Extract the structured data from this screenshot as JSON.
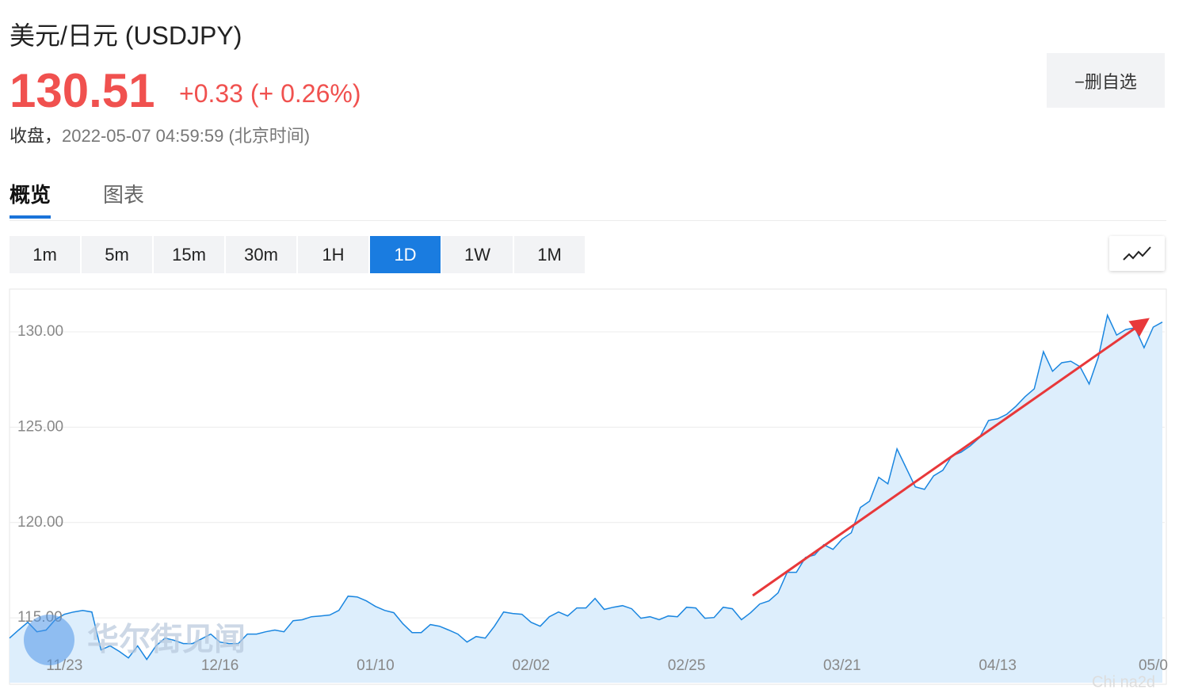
{
  "header": {
    "title": "美元/日元 (USDJPY)",
    "price": "130.51",
    "change": "+0.33 (+ 0.26%)",
    "close_label": "收盘，",
    "close_time": "2022-05-07 04:59:59",
    "timezone": "(北京时间)",
    "watchlist_button": "−删自选"
  },
  "tabs": [
    "概览",
    "图表"
  ],
  "intervals": [
    "1m",
    "5m",
    "15m",
    "30m",
    "1H",
    "1D",
    "1W",
    "1M"
  ],
  "active_interval": "1D",
  "watermarks": [
    "华尔街见闻",
    "Chi na2d"
  ],
  "chart_data": {
    "type": "area",
    "color": "#1a86e0",
    "fill": "#ddeefc",
    "grid": true,
    "ylim": [
      111.6,
      132.2
    ],
    "yticks": [
      {
        "value": 115,
        "label": "115.00"
      },
      {
        "value": 120,
        "label": "120.00"
      },
      {
        "value": 125,
        "label": "125.00"
      },
      {
        "value": 130,
        "label": "130.00"
      }
    ],
    "categories": [
      null,
      null,
      null,
      null,
      null,
      null,
      "11/23",
      null,
      null,
      null,
      null,
      null,
      null,
      null,
      null,
      null,
      null,
      null,
      null,
      null,
      null,
      null,
      null,
      "12/16",
      null,
      null,
      null,
      null,
      null,
      null,
      null,
      null,
      null,
      null,
      null,
      null,
      null,
      null,
      null,
      null,
      "01/10",
      null,
      null,
      null,
      null,
      null,
      null,
      null,
      null,
      null,
      null,
      null,
      null,
      null,
      null,
      null,
      null,
      "02/02",
      null,
      null,
      null,
      null,
      null,
      null,
      null,
      null,
      null,
      null,
      null,
      null,
      null,
      null,
      null,
      null,
      "02/25",
      null,
      null,
      null,
      null,
      null,
      null,
      null,
      null,
      null,
      null,
      null,
      null,
      null,
      null,
      null,
      null,
      "03/21",
      null,
      null,
      null,
      null,
      null,
      null,
      null,
      null,
      null,
      null,
      null,
      null,
      null,
      null,
      null,
      null,
      "04/13",
      null,
      null,
      null,
      null,
      null,
      null,
      null,
      null,
      null,
      null,
      null,
      null,
      null,
      null,
      null,
      null,
      "05/0",
      null
    ],
    "values": [
      113.94,
      114.36,
      114.77,
      114.27,
      114.36,
      114.9,
      115.19,
      115.31,
      115.39,
      115.31,
      113.32,
      113.53,
      113.24,
      112.9,
      113.53,
      112.82,
      113.53,
      113.94,
      113.82,
      113.65,
      113.65,
      113.9,
      114.15,
      113.73,
      113.65,
      113.65,
      114.15,
      114.15,
      114.27,
      114.36,
      114.27,
      114.85,
      114.9,
      115.06,
      115.1,
      115.15,
      115.39,
      116.14,
      116.1,
      115.89,
      115.6,
      115.39,
      115.27,
      114.69,
      114.23,
      114.23,
      114.65,
      114.56,
      114.36,
      114.15,
      113.73,
      114.02,
      113.94,
      114.56,
      115.31,
      115.23,
      115.19,
      114.77,
      114.56,
      115.06,
      115.31,
      115.1,
      115.52,
      115.52,
      116.02,
      115.44,
      115.56,
      115.64,
      115.48,
      114.98,
      115.06,
      114.9,
      115.1,
      115.06,
      115.56,
      115.52,
      114.98,
      115.02,
      115.56,
      115.48,
      114.9,
      115.27,
      115.73,
      115.89,
      116.31,
      117.39,
      117.39,
      118.17,
      118.3,
      118.84,
      118.59,
      119.13,
      119.46,
      120.79,
      121.12,
      122.37,
      122.03,
      123.86,
      122.86,
      121.87,
      121.74,
      122.45,
      122.74,
      123.49,
      123.69,
      124.02,
      124.44,
      125.35,
      125.44,
      125.68,
      126.1,
      126.6,
      127.01,
      128.96,
      127.93,
      128.38,
      128.46,
      128.17,
      127.26,
      128.67,
      130.87,
      129.83,
      130.12,
      130.21,
      129.17,
      130.25,
      130.51
    ]
  }
}
